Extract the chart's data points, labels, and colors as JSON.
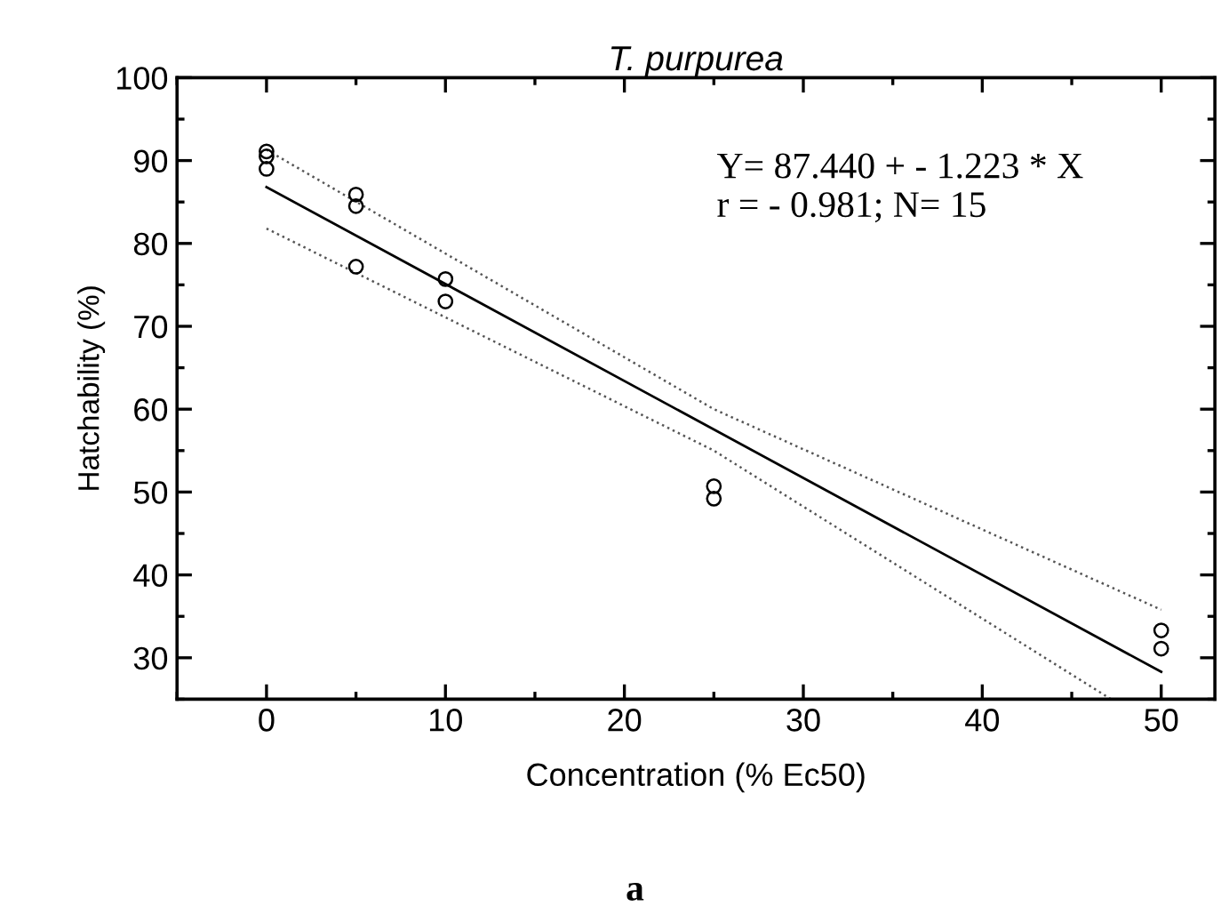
{
  "chart_data": {
    "type": "scatter",
    "title": "T. purpurea",
    "xlabel": "Concentration (% Ec50)",
    "ylabel": "Hatchability (%)",
    "annotations": [
      "Y= 87.440 + - 1.223 * X\nr = - 0.981; N= 15",
      "a"
    ],
    "xlim": [
      -5,
      53
    ],
    "xticks": [
      0,
      10,
      20,
      30,
      40,
      50
    ],
    "ylim": [
      25,
      100
    ],
    "yticks": [
      30,
      40,
      50,
      60,
      70,
      80,
      90,
      100
    ],
    "grid": false,
    "marker": "circle",
    "series": [
      {
        "color": "#000000",
        "x": [
          0,
          0,
          0,
          5,
          5,
          5,
          10,
          10,
          25,
          25,
          50,
          50
        ],
        "values": [
          91.1,
          90.5,
          89.0,
          85.9,
          84.5,
          77.2,
          75.7,
          73.0,
          50.7,
          49.2,
          33.3,
          31.1
        ]
      },
      {
        "type": "line",
        "color": "#000000",
        "line_style": "solid",
        "marker": "none",
        "x": [
          0,
          50
        ],
        "values": [
          86.8,
          28.3
        ]
      },
      {
        "type": "line",
        "color": "#555555",
        "line_style": "dotted",
        "marker": "none",
        "x": [
          0,
          25,
          50
        ],
        "values": [
          91.3,
          60.0,
          35.8
        ]
      },
      {
        "type": "line",
        "color": "#555555",
        "line_style": "dotted",
        "marker": "none",
        "x": [
          0,
          25,
          47.2
        ],
        "values": [
          81.8,
          55.0,
          25.0
        ]
      }
    ]
  }
}
